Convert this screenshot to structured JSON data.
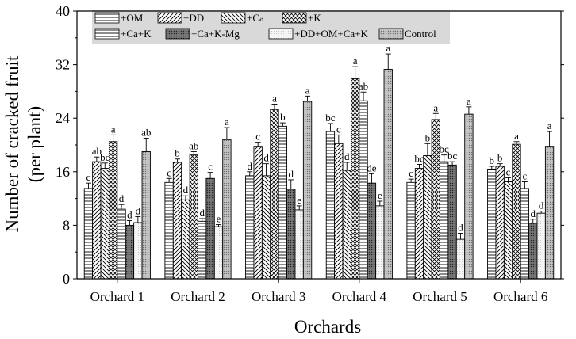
{
  "chart_data": {
    "type": "bar",
    "title": "",
    "xlabel": "Orchards",
    "ylabel_lines": [
      "Number of cracked fruit",
      "(per plant)"
    ],
    "ylim": [
      0,
      40
    ],
    "yticks": [
      "0",
      "8",
      "16",
      "24",
      "32",
      "40"
    ],
    "categories": [
      "Orchard 1",
      "Orchard 2",
      "Orchard 3",
      "Orchard 4",
      "Orchard 5",
      "Orchard 6"
    ],
    "legend_position": "top-left",
    "series": [
      {
        "name": "+OM",
        "pattern": "hlines",
        "values": [
          13.5,
          14.4,
          15.4,
          22.0,
          14.4,
          16.4
        ],
        "errors": [
          0.8,
          0.6,
          0.6,
          1.2,
          0.5,
          0.4
        ],
        "labels": [
          "c",
          "c",
          "d",
          "bc",
          "c",
          "b"
        ]
      },
      {
        "name": "+DD",
        "pattern": "diag-up",
        "values": [
          17.5,
          17.4,
          19.8,
          20.2,
          16.5,
          16.8
        ],
        "errors": [
          0.7,
          0.5,
          0.6,
          1.3,
          0.6,
          0.4
        ],
        "labels": [
          "ab",
          "b",
          "c",
          "c",
          "bc",
          "b"
        ]
      },
      {
        "name": "+Ca",
        "pattern": "diag-down",
        "values": [
          16.5,
          11.8,
          15.4,
          16.2,
          18.4,
          14.5
        ],
        "errors": [
          0.8,
          0.6,
          1.8,
          1.2,
          1.8,
          0.6
        ],
        "labels": [
          "bc",
          "d",
          "d",
          "d",
          "b",
          "c"
        ]
      },
      {
        "name": "+K",
        "pattern": "cross",
        "values": [
          20.5,
          18.5,
          25.3,
          29.9,
          23.8,
          20.1
        ],
        "errors": [
          1.0,
          0.5,
          0.8,
          1.8,
          0.9,
          0.4
        ],
        "labels": [
          "a",
          "ab",
          "a",
          "a",
          "a",
          "a"
        ]
      },
      {
        "name": "+Ca+K",
        "pattern": "hlines",
        "values": [
          10.4,
          8.6,
          22.8,
          26.6,
          17.5,
          13.5
        ],
        "errors": [
          0.7,
          0.4,
          0.5,
          1.3,
          1.0,
          1.0
        ],
        "labels": [
          "d",
          "d",
          "b",
          "ab",
          "bc",
          "c"
        ]
      },
      {
        "name": "+Ca+K-Mg",
        "pattern": "dark",
        "values": [
          8.0,
          15.0,
          13.4,
          14.3,
          17.0,
          8.3
        ],
        "errors": [
          0.7,
          0.9,
          1.4,
          1.4,
          0.5,
          0.6
        ],
        "labels": [
          "d",
          "c",
          "d",
          "de",
          "bc",
          "d"
        ]
      },
      {
        "name": "+DD+OM+Ca+K",
        "pattern": "light",
        "values": [
          8.4,
          7.8,
          10.3,
          10.9,
          5.9,
          9.8
        ],
        "errors": [
          0.9,
          0.3,
          0.6,
          0.7,
          0.9,
          0.3
        ],
        "labels": [
          "d",
          "e",
          "e",
          "e",
          "d",
          "d"
        ]
      },
      {
        "name": "Control",
        "pattern": "dots",
        "values": [
          19.0,
          20.8,
          26.5,
          31.3,
          24.6,
          19.8
        ],
        "errors": [
          2.0,
          1.8,
          0.8,
          2.3,
          1.1,
          2.2
        ],
        "labels": [
          "ab",
          "a",
          "a",
          "a",
          "a",
          "a"
        ]
      }
    ]
  }
}
